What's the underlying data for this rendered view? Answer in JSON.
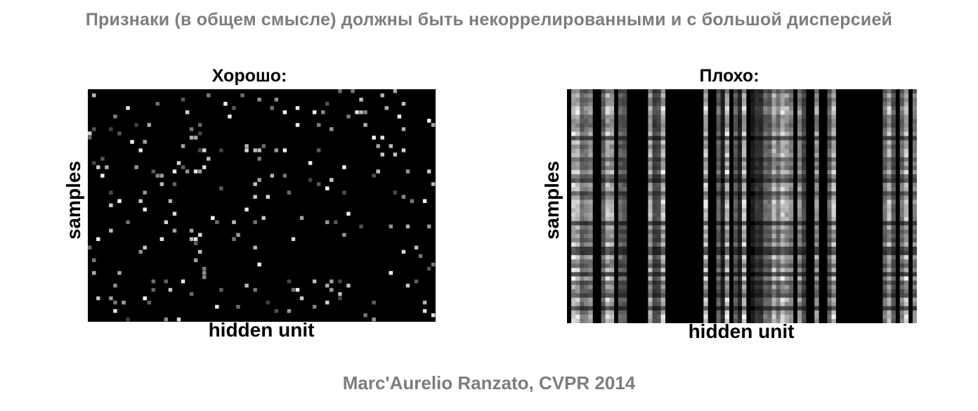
{
  "title": "Признаки (в общем смысле) должны быть некоррелированными и с большой дисперсией",
  "credit": "Marc'Aurelio Ranzato, CVPR 2014",
  "colors": {
    "title_gray": "#7d7d7d",
    "heatmap_background": "#000000",
    "heatmap_high": "#ffffff"
  },
  "chart_data": [
    {
      "type": "heatmap",
      "title": "Хорошо:",
      "xlabel": "hidden unit",
      "ylabel": "samples",
      "pattern": "sparse",
      "colormap": "gray"
    },
    {
      "type": "heatmap",
      "title": "Плохо:",
      "xlabel": "hidden unit",
      "ylabel": "samples",
      "pattern": "dense-columns",
      "colormap": "gray"
    }
  ]
}
